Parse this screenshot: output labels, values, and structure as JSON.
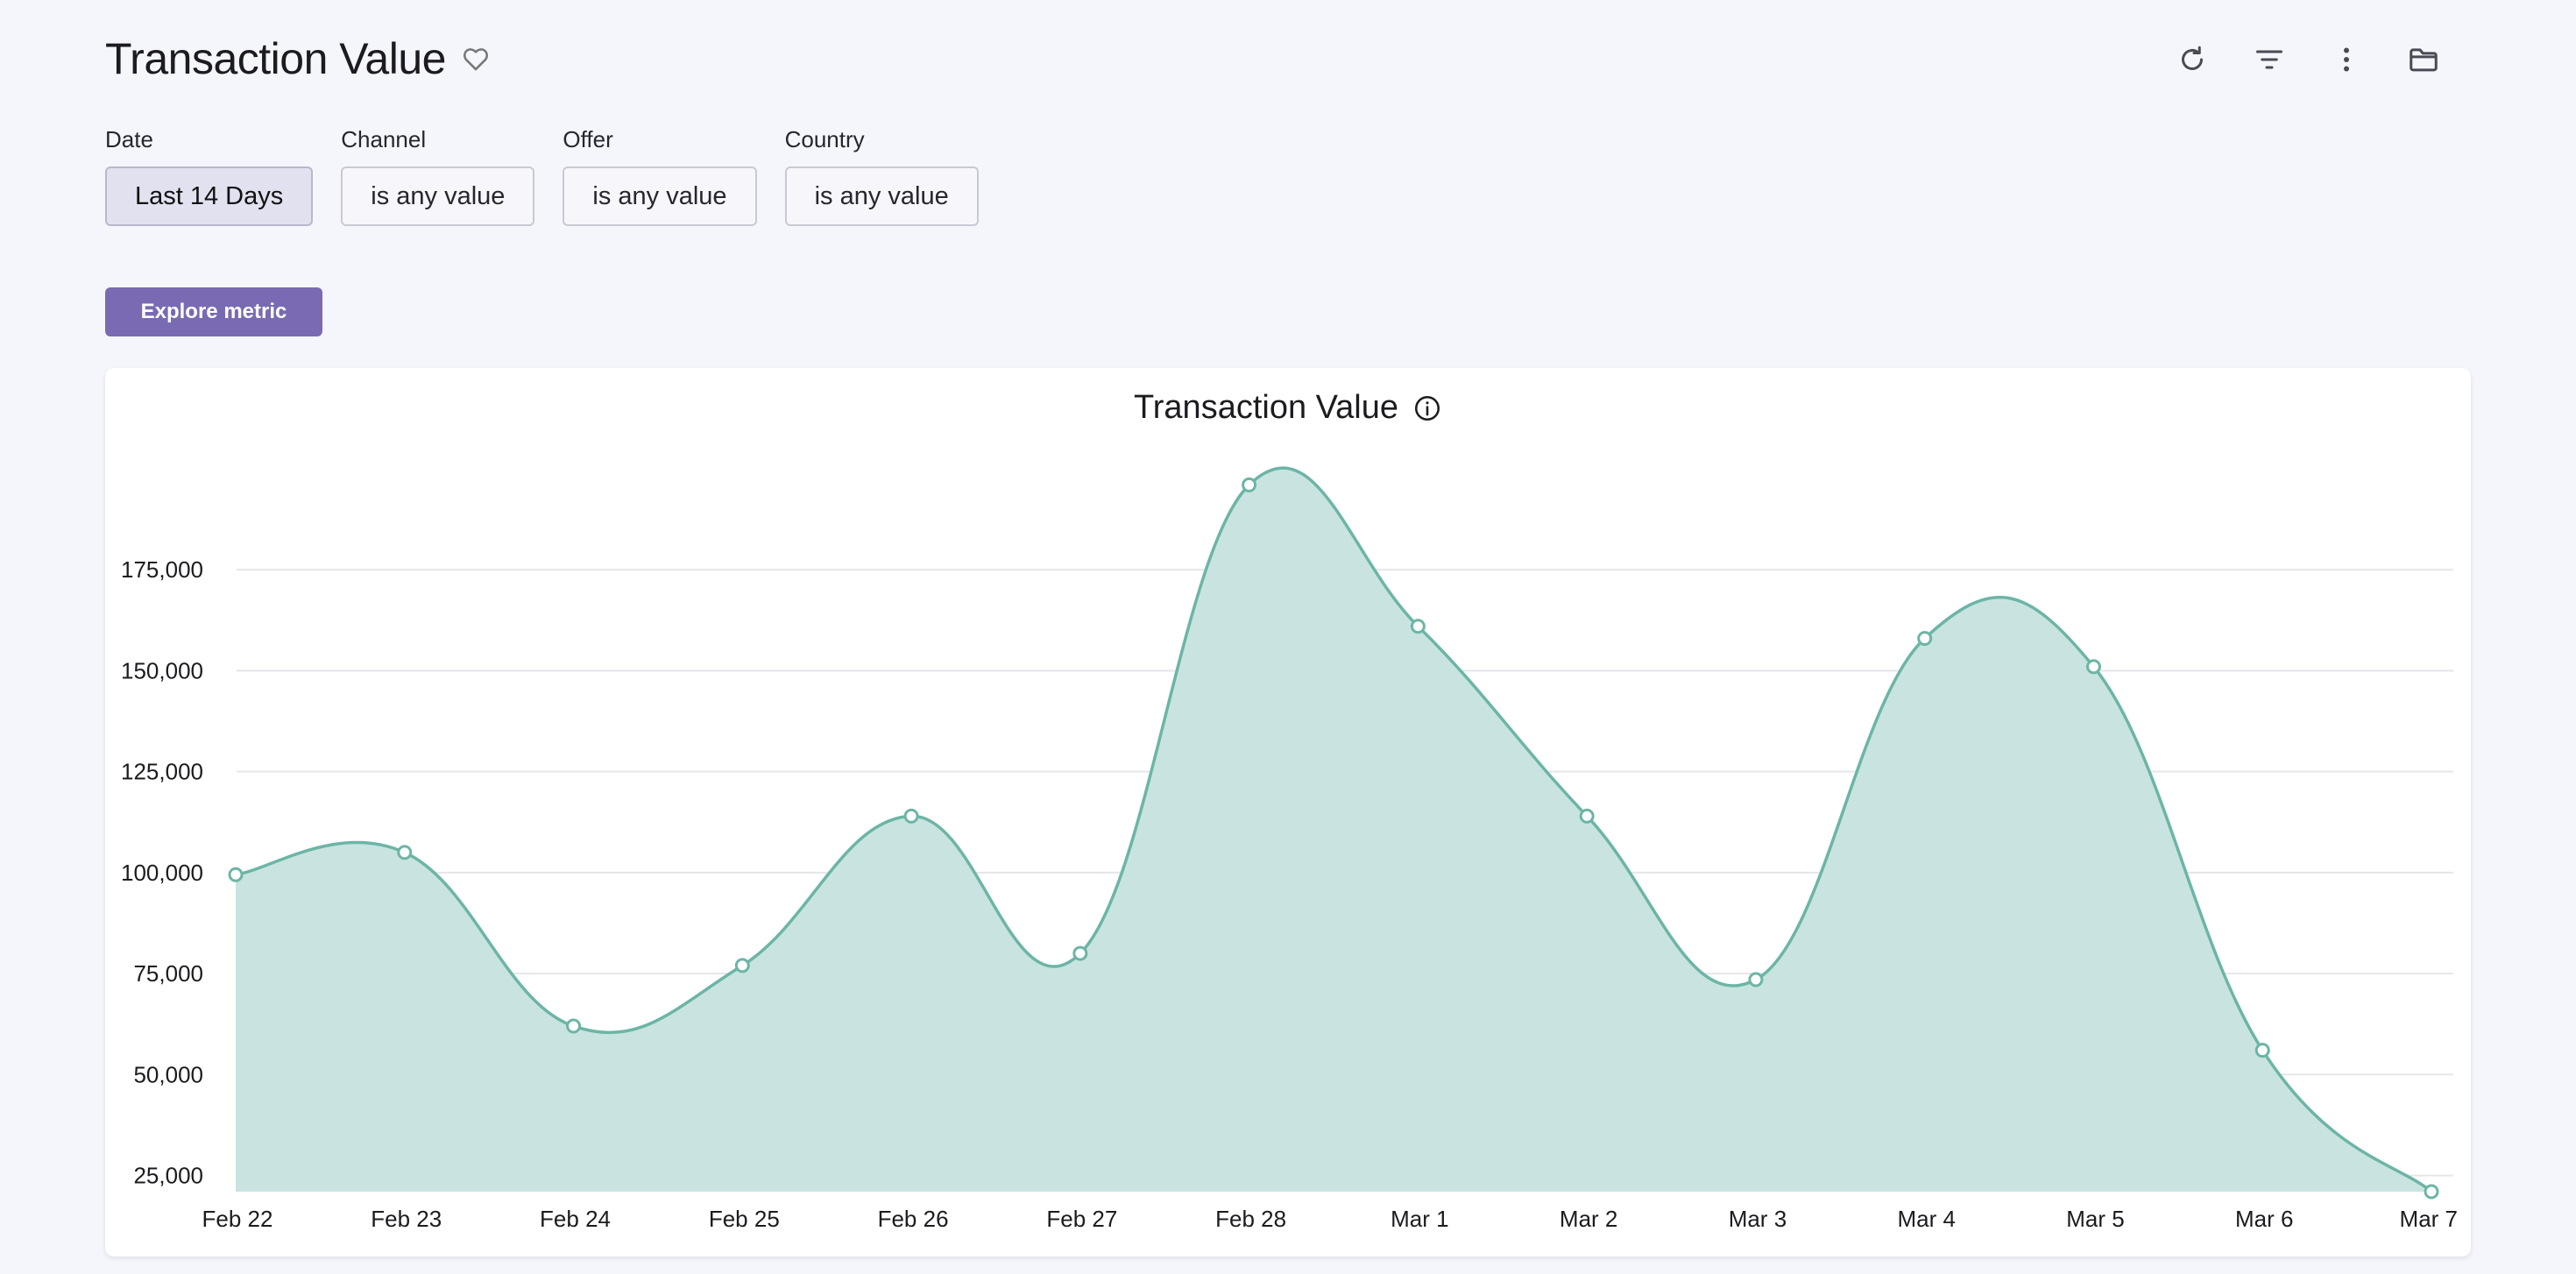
{
  "header": {
    "title": "Transaction Value",
    "icons": [
      "heart-icon"
    ]
  },
  "toolbar": {
    "icons": [
      "refresh-icon",
      "filter-icon",
      "more-vertical-icon",
      "folder-icon"
    ]
  },
  "filters": [
    {
      "label": "Date",
      "value": "Last 14 Days",
      "active": true
    },
    {
      "label": "Channel",
      "value": "is any value",
      "active": false
    },
    {
      "label": "Offer",
      "value": "is any value",
      "active": false
    },
    {
      "label": "Country",
      "value": "is any value",
      "active": false
    }
  ],
  "explore_button": {
    "label": "Explore metric"
  },
  "colors": {
    "accent": "#7a6ab3",
    "series_line": "#6cb5a6",
    "series_fill": "#c6e3de",
    "background": "#f5f6fb"
  },
  "chart_data": {
    "type": "area",
    "title": "Transaction Value",
    "xlabel": "",
    "ylabel": "",
    "categories": [
      "Feb 22",
      "Feb 23",
      "Feb 24",
      "Feb 25",
      "Feb 26",
      "Feb 27",
      "Feb 28",
      "Mar 1",
      "Mar 2",
      "Mar 3",
      "Mar 4",
      "Mar 5",
      "Mar 6",
      "Mar 7"
    ],
    "series": [
      {
        "values": [
          99500,
          105000,
          62000,
          77000,
          114000,
          80000,
          196000,
          161000,
          114000,
          73500,
          158000,
          151000,
          56000,
          21000
        ]
      }
    ],
    "y_ticks": [
      "25,000",
      "50,000",
      "75,000",
      "100,000",
      "125,000",
      "150,000",
      "175,000"
    ],
    "y_tick_values": [
      25000,
      50000,
      75000,
      100000,
      125000,
      150000,
      175000
    ],
    "ylim": [
      21000,
      200000
    ],
    "grid": true,
    "legend": "none",
    "smooth": true,
    "markers": "hollow-circle"
  }
}
